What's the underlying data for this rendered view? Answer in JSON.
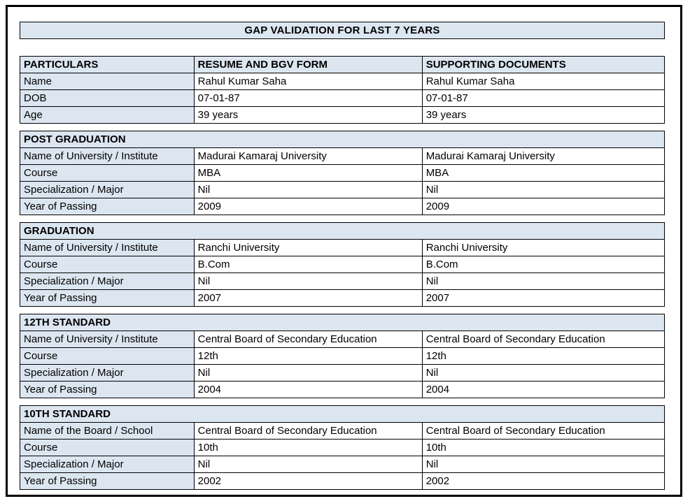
{
  "page": {
    "title": "GAP VALIDATION FOR LAST 7 YEARS"
  },
  "colors": {
    "shaded_cell_fill": "#dce6f1",
    "border": "#000000",
    "page_background": "#ffffff",
    "text": "#000000"
  },
  "tables": [
    {
      "id": "particulars",
      "columns": [
        "PARTICULARS",
        "RESUME AND BGV FORM",
        "SUPPORTING DOCUMENTS"
      ],
      "rows": [
        [
          "Name",
          "Rahul Kumar Saha",
          "Rahul Kumar Saha"
        ],
        [
          "DOB",
          "07-01-87",
          "07-01-87"
        ],
        [
          "Age",
          "39 years",
          "39 years"
        ]
      ]
    },
    {
      "id": "post-graduation",
      "section_title": "POST GRADUATION",
      "rows": [
        [
          "Name of University / Institute",
          "Madurai Kamaraj University",
          "Madurai Kamaraj University"
        ],
        [
          "Course",
          "MBA",
          "MBA"
        ],
        [
          "Specialization / Major",
          "Nil",
          "Nil"
        ],
        [
          "Year of Passing",
          "2009",
          "2009"
        ]
      ]
    },
    {
      "id": "graduation",
      "section_title": "GRADUATION",
      "rows": [
        [
          "Name of University / Institute",
          "Ranchi University",
          "Ranchi University"
        ],
        [
          "Course",
          "B.Com",
          "B.Com"
        ],
        [
          "Specialization / Major",
          "Nil",
          "Nil"
        ],
        [
          "Year of Passing",
          "2007",
          "2007"
        ]
      ]
    },
    {
      "id": "12th-standard",
      "section_title": "12TH STANDARD",
      "rows": [
        [
          "Name of University / Institute",
          "Central Board of Secondary Education",
          "Central Board of Secondary Education"
        ],
        [
          "Course",
          "12th",
          "12th"
        ],
        [
          "Specialization / Major",
          "Nil",
          "Nil"
        ],
        [
          "Year of Passing",
          "2004",
          "2004"
        ]
      ]
    },
    {
      "id": "10th-standard",
      "section_title": "10TH STANDARD",
      "rows": [
        [
          "Name of the Board / School",
          "Central Board of Secondary Education",
          "Central Board of Secondary Education"
        ],
        [
          "Course",
          "10th",
          "10th"
        ],
        [
          "Specialization / Major",
          "Nil",
          "Nil"
        ],
        [
          "Year of Passing",
          "2002",
          "2002"
        ]
      ]
    }
  ]
}
